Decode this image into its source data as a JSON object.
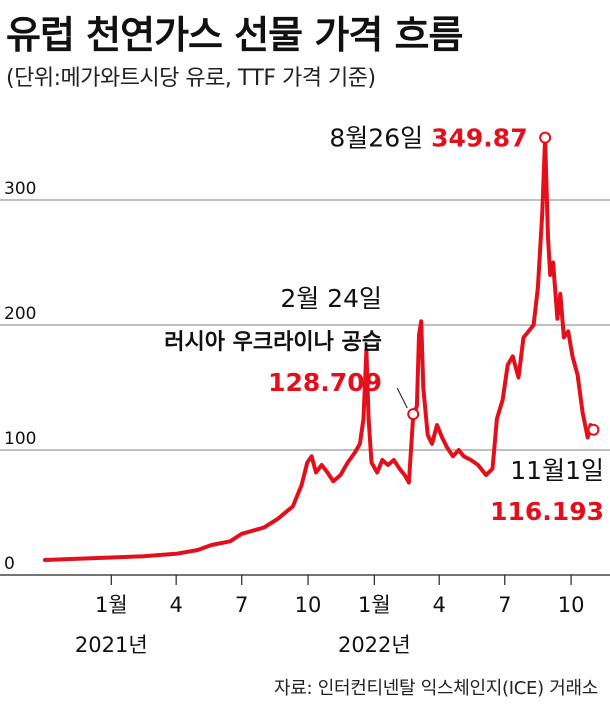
{
  "title": "유럽 천연가스 선물 가격 흐름",
  "subtitle": "(단위:메가와트시당 유로, TTF 가격 기준)",
  "source": "자료: 인터컨티넨탈 익스체인지(ICE) 거래소",
  "colors": {
    "line": "#e3101c",
    "grid": "#555555",
    "text": "#111111",
    "highlight": "#e3101c"
  },
  "chart_data": {
    "type": "line",
    "title": "유럽 천연가스 선물 가격 흐름",
    "xlabel": "",
    "ylabel": "",
    "ylim": [
      0,
      380
    ],
    "xlim": [
      "2020-10-01",
      "2022-11-24"
    ],
    "yticks": [
      0,
      100,
      200,
      300
    ],
    "ytick_labels": [
      "0",
      "100",
      "200",
      "300"
    ],
    "xticks": [
      {
        "date": "2021-01-01",
        "label": "1월"
      },
      {
        "date": "2021-04-01",
        "label": "4"
      },
      {
        "date": "2021-07-01",
        "label": "7"
      },
      {
        "date": "2021-10-01",
        "label": "10"
      },
      {
        "date": "2022-01-01",
        "label": "1월"
      },
      {
        "date": "2022-04-01",
        "label": "4"
      },
      {
        "date": "2022-07-01",
        "label": "7"
      },
      {
        "date": "2022-10-01",
        "label": "10"
      }
    ],
    "year_labels": [
      {
        "date": "2021-01-01",
        "label": "2021년"
      },
      {
        "date": "2022-01-01",
        "label": "2022년"
      }
    ],
    "grid": true,
    "series": [
      {
        "points": [
          [
            "2020-10-01",
            12
          ],
          [
            "2020-11-15",
            13
          ],
          [
            "2021-01-01",
            14
          ],
          [
            "2021-02-15",
            15
          ],
          [
            "2021-04-01",
            17
          ],
          [
            "2021-05-01",
            20
          ],
          [
            "2021-05-20",
            24
          ],
          [
            "2021-06-15",
            27
          ],
          [
            "2021-07-01",
            33
          ],
          [
            "2021-08-01",
            38
          ],
          [
            "2021-08-20",
            45
          ],
          [
            "2021-09-10",
            55
          ],
          [
            "2021-09-22",
            72
          ],
          [
            "2021-09-30",
            90
          ],
          [
            "2021-10-06",
            95
          ],
          [
            "2021-10-12",
            82
          ],
          [
            "2021-10-20",
            88
          ],
          [
            "2021-10-28",
            82
          ],
          [
            "2021-11-05",
            75
          ],
          [
            "2021-11-15",
            80
          ],
          [
            "2021-11-25",
            90
          ],
          [
            "2021-12-05",
            98
          ],
          [
            "2021-12-12",
            105
          ],
          [
            "2021-12-17",
            125
          ],
          [
            "2021-12-21",
            180
          ],
          [
            "2021-12-24",
            125
          ],
          [
            "2021-12-28",
            90
          ],
          [
            "2022-01-05",
            82
          ],
          [
            "2022-01-12",
            92
          ],
          [
            "2022-01-20",
            88
          ],
          [
            "2022-01-28",
            92
          ],
          [
            "2022-02-05",
            85
          ],
          [
            "2022-02-12",
            80
          ],
          [
            "2022-02-18",
            74
          ],
          [
            "2022-02-24",
            128.709
          ],
          [
            "2022-03-01",
            135
          ],
          [
            "2022-03-04",
            192
          ],
          [
            "2022-03-07",
            203
          ],
          [
            "2022-03-10",
            150
          ],
          [
            "2022-03-16",
            112
          ],
          [
            "2022-03-22",
            105
          ],
          [
            "2022-03-29",
            120
          ],
          [
            "2022-04-05",
            110
          ],
          [
            "2022-04-12",
            102
          ],
          [
            "2022-04-20",
            95
          ],
          [
            "2022-04-28",
            100
          ],
          [
            "2022-05-05",
            95
          ],
          [
            "2022-05-15",
            92
          ],
          [
            "2022-05-25",
            88
          ],
          [
            "2022-06-05",
            80
          ],
          [
            "2022-06-14",
            85
          ],
          [
            "2022-06-20",
            125
          ],
          [
            "2022-06-28",
            140
          ],
          [
            "2022-07-05",
            168
          ],
          [
            "2022-07-12",
            175
          ],
          [
            "2022-07-20",
            158
          ],
          [
            "2022-07-27",
            190
          ],
          [
            "2022-08-03",
            195
          ],
          [
            "2022-08-10",
            200
          ],
          [
            "2022-08-16",
            230
          ],
          [
            "2022-08-22",
            290
          ],
          [
            "2022-08-26",
            349.87
          ],
          [
            "2022-08-30",
            270
          ],
          [
            "2022-09-02",
            240
          ],
          [
            "2022-09-06",
            250
          ],
          [
            "2022-09-12",
            205
          ],
          [
            "2022-09-16",
            225
          ],
          [
            "2022-09-21",
            190
          ],
          [
            "2022-09-27",
            195
          ],
          [
            "2022-10-03",
            175
          ],
          [
            "2022-10-10",
            160
          ],
          [
            "2022-10-17",
            130
          ],
          [
            "2022-10-24",
            110
          ],
          [
            "2022-10-28",
            120
          ],
          [
            "2022-11-01",
            116.193
          ]
        ]
      }
    ],
    "annotations": [
      {
        "id": "peak",
        "date": "2022-08-26",
        "value": 349.87,
        "date_label": "8월26일",
        "value_label": "349.87"
      },
      {
        "id": "invasion",
        "date": "2022-02-24",
        "value": 128.709,
        "date_label": "2월 24일",
        "event_label": "러시아 우크라이나 공습",
        "value_label": "128.709"
      },
      {
        "id": "latest",
        "date": "2022-11-01",
        "value": 116.193,
        "date_label": "11월1일",
        "value_label": "116.193"
      }
    ]
  }
}
